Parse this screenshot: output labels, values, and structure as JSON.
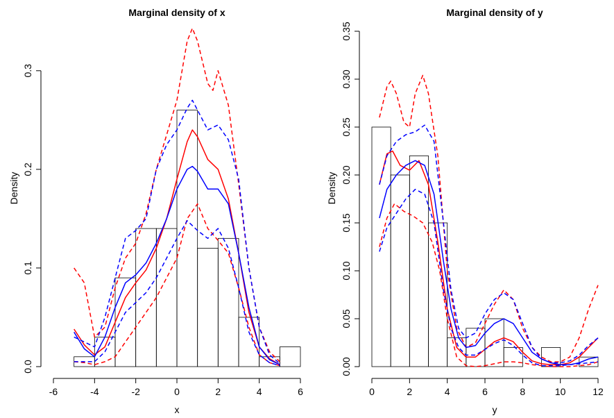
{
  "chart_data": [
    {
      "type": "histogram",
      "title": "Marginal density of x",
      "xlabel": "x",
      "ylabel": "Density",
      "xlim": [
        -6,
        6
      ],
      "ylim": [
        0,
        0.34
      ],
      "x_ticks": [
        -6,
        -4,
        -2,
        0,
        2,
        4,
        6
      ],
      "x_tick_labels": [
        "-6",
        "-4",
        "-2",
        "0",
        "2",
        "4",
        "6"
      ],
      "y_ticks": [
        0.0,
        0.1,
        0.2,
        0.3
      ],
      "y_tick_labels": [
        "0.0",
        "0.1",
        "0.2",
        "0.3"
      ],
      "grid": false,
      "bar_edges": [
        -5,
        -4,
        -3,
        -2,
        -1,
        0,
        1,
        2,
        3,
        4,
        5,
        6
      ],
      "bar_values": [
        0.01,
        0.03,
        0.09,
        0.14,
        0.14,
        0.26,
        0.12,
        0.13,
        0.05,
        0.01,
        0.02
      ],
      "series": [
        {
          "color": "#ff0000",
          "style": "solid",
          "x": [
            -5,
            -4.5,
            -4,
            -3.5,
            -3,
            -2.5,
            -2,
            -1.5,
            -1,
            -0.5,
            0,
            0.5,
            0.75,
            1,
            1.5,
            2,
            2.5,
            3,
            3.5,
            4,
            4.5,
            5
          ],
          "y": [
            0.038,
            0.022,
            0.012,
            0.02,
            0.045,
            0.07,
            0.085,
            0.098,
            0.12,
            0.15,
            0.19,
            0.228,
            0.24,
            0.233,
            0.21,
            0.2,
            0.17,
            0.115,
            0.055,
            0.02,
            0.008,
            0.002
          ]
        },
        {
          "color": "#ff0000",
          "style": "dashed",
          "x": [
            -5,
            -4.5,
            -4,
            -3.5,
            -3,
            -2.5,
            -2,
            -1.5,
            -1,
            -0.5,
            0,
            0.5,
            0.75,
            1,
            1.5,
            1.75,
            2,
            2.5,
            3,
            3.5,
            4,
            4.5,
            5
          ],
          "y": [
            0.1,
            0.085,
            0.03,
            0.04,
            0.08,
            0.11,
            0.125,
            0.155,
            0.2,
            0.235,
            0.27,
            0.33,
            0.343,
            0.33,
            0.287,
            0.28,
            0.3,
            0.265,
            0.185,
            0.1,
            0.04,
            0.015,
            0.005
          ]
        },
        {
          "color": "#ff0000",
          "style": "dashed",
          "x": [
            -5,
            -4.5,
            -4,
            -3.5,
            -3,
            -2.5,
            -2,
            -1.5,
            -1,
            -0.5,
            0,
            0.5,
            1,
            1.5,
            2,
            2.5,
            3,
            3.5,
            4,
            4.5,
            5
          ],
          "y": [
            0.005,
            0.004,
            0.002,
            0.005,
            0.01,
            0.025,
            0.04,
            0.055,
            0.07,
            0.09,
            0.11,
            0.15,
            0.165,
            0.14,
            0.128,
            0.115,
            0.08,
            0.04,
            0.012,
            0.004,
            0.001
          ]
        },
        {
          "color": "#0000ff",
          "style": "solid",
          "x": [
            -5,
            -4.5,
            -4,
            -3.5,
            -3,
            -2.5,
            -2,
            -1.5,
            -1,
            -0.5,
            0,
            0.5,
            0.75,
            1,
            1.5,
            2,
            2.5,
            3,
            3.5,
            4,
            4.5,
            5
          ],
          "y": [
            0.035,
            0.018,
            0.01,
            0.03,
            0.06,
            0.085,
            0.093,
            0.105,
            0.125,
            0.15,
            0.18,
            0.2,
            0.203,
            0.198,
            0.18,
            0.18,
            0.165,
            0.115,
            0.06,
            0.02,
            0.007,
            0.002
          ]
        },
        {
          "color": "#0000ff",
          "style": "dashed",
          "x": [
            -5,
            -4.5,
            -4,
            -3.5,
            -3,
            -2.5,
            -2,
            -1.5,
            -1,
            -0.5,
            0,
            0.5,
            0.75,
            1,
            1.5,
            2,
            2.5,
            3,
            3.5,
            4,
            4.5,
            5
          ],
          "y": [
            0.03,
            0.025,
            0.02,
            0.05,
            0.09,
            0.13,
            0.138,
            0.15,
            0.2,
            0.225,
            0.24,
            0.262,
            0.27,
            0.26,
            0.24,
            0.245,
            0.23,
            0.19,
            0.1,
            0.04,
            0.012,
            0.003
          ]
        },
        {
          "color": "#0000ff",
          "style": "dashed",
          "x": [
            -5,
            -4.5,
            -4,
            -3.5,
            -3,
            -2.5,
            -2,
            -1.5,
            -1,
            -0.5,
            0,
            0.5,
            1,
            1.5,
            2,
            2.5,
            3,
            3.5,
            4,
            4.5,
            5
          ],
          "y": [
            0.005,
            0.005,
            0.005,
            0.015,
            0.035,
            0.055,
            0.065,
            0.075,
            0.09,
            0.11,
            0.13,
            0.148,
            0.138,
            0.13,
            0.14,
            0.12,
            0.08,
            0.035,
            0.012,
            0.004,
            0.001
          ]
        }
      ]
    },
    {
      "type": "histogram",
      "title": "Marginal density of y",
      "xlabel": "y",
      "ylabel": "Density",
      "xlim": [
        0,
        12
      ],
      "ylim": [
        0,
        0.35
      ],
      "x_ticks": [
        0,
        2,
        4,
        6,
        8,
        10,
        12
      ],
      "x_tick_labels": [
        "0",
        "2",
        "4",
        "6",
        "8",
        "10",
        "12"
      ],
      "y_ticks": [
        0.0,
        0.05,
        0.1,
        0.15,
        0.2,
        0.25,
        0.3,
        0.35
      ],
      "y_tick_labels": [
        "0.00",
        "0.05",
        "0.10",
        "0.15",
        "0.20",
        "0.25",
        "0.30",
        "0.35"
      ],
      "grid": false,
      "bar_edges": [
        0,
        1,
        2,
        3,
        4,
        5,
        6,
        7,
        8,
        9,
        10,
        11,
        12
      ],
      "bar_values": [
        0.25,
        0.2,
        0.22,
        0.15,
        0.03,
        0.04,
        0.05,
        0.02,
        0.0,
        0.02,
        0.0,
        0.01
      ],
      "series": [
        {
          "color": "#ff0000",
          "style": "solid",
          "x": [
            0.4,
            0.8,
            1.1,
            1.5,
            2.0,
            2.5,
            3.0,
            3.5,
            4.0,
            4.5,
            5.0,
            5.5,
            6.0,
            6.5,
            7.0,
            7.5,
            8.0,
            8.5,
            9.0,
            9.5,
            10.0,
            10.5,
            11.0,
            11.5,
            12.0
          ],
          "y": [
            0.19,
            0.222,
            0.225,
            0.21,
            0.205,
            0.215,
            0.19,
            0.13,
            0.06,
            0.02,
            0.01,
            0.01,
            0.018,
            0.026,
            0.03,
            0.026,
            0.015,
            0.006,
            0.003,
            0.002,
            0.002,
            0.004,
            0.01,
            0.02,
            0.03
          ]
        },
        {
          "color": "#ff0000",
          "style": "dashed",
          "x": [
            0.4,
            0.8,
            1.0,
            1.3,
            1.7,
            2.0,
            2.3,
            2.7,
            3.0,
            3.5,
            4.0,
            4.5,
            5.0,
            5.5,
            6.0,
            6.5,
            7.0,
            7.5,
            8.0,
            8.5,
            9.0,
            9.5,
            10.0,
            10.5,
            11.0,
            11.5,
            12.0
          ],
          "y": [
            0.26,
            0.292,
            0.298,
            0.285,
            0.255,
            0.25,
            0.285,
            0.304,
            0.285,
            0.22,
            0.1,
            0.04,
            0.02,
            0.025,
            0.045,
            0.065,
            0.08,
            0.07,
            0.04,
            0.02,
            0.01,
            0.005,
            0.005,
            0.01,
            0.03,
            0.06,
            0.085
          ]
        },
        {
          "color": "#ff0000",
          "style": "dashed",
          "x": [
            0.4,
            0.8,
            1.2,
            1.7,
            2.2,
            2.7,
            3.2,
            3.6,
            4.0,
            4.5,
            5.0,
            5.5,
            6.0,
            6.5,
            7.0,
            7.5,
            8.0,
            8.5,
            9.0,
            9.5,
            10.0,
            10.5,
            11.0,
            11.5,
            12.0
          ],
          "y": [
            0.125,
            0.155,
            0.17,
            0.162,
            0.157,
            0.15,
            0.13,
            0.1,
            0.05,
            0.01,
            0.001,
            0.0,
            0.001,
            0.003,
            0.005,
            0.005,
            0.004,
            0.002,
            0.001,
            0.0,
            0.0,
            0.0,
            0.001,
            0.002,
            0.005
          ]
        },
        {
          "color": "#0000ff",
          "style": "solid",
          "x": [
            0.4,
            0.8,
            1.3,
            1.8,
            2.3,
            2.8,
            3.3,
            3.8,
            4.2,
            4.6,
            5.0,
            5.5,
            6.0,
            6.5,
            7.0,
            7.5,
            8.0,
            8.5,
            9.0,
            9.5,
            10.0,
            10.5,
            11.0,
            11.5,
            12.0
          ],
          "y": [
            0.155,
            0.185,
            0.2,
            0.21,
            0.215,
            0.21,
            0.18,
            0.11,
            0.06,
            0.03,
            0.02,
            0.022,
            0.035,
            0.045,
            0.05,
            0.045,
            0.03,
            0.015,
            0.008,
            0.004,
            0.002,
            0.002,
            0.004,
            0.008,
            0.01
          ]
        },
        {
          "color": "#0000ff",
          "style": "dashed",
          "x": [
            0.4,
            0.8,
            1.3,
            1.8,
            2.3,
            2.8,
            3.3,
            3.8,
            4.2,
            4.6,
            5.0,
            5.5,
            6.0,
            6.5,
            7.0,
            7.5,
            8.0,
            8.5,
            9.0,
            9.5,
            10.0,
            10.5,
            11.0,
            11.5,
            12.0
          ],
          "y": [
            0.19,
            0.22,
            0.235,
            0.242,
            0.245,
            0.252,
            0.235,
            0.15,
            0.08,
            0.04,
            0.03,
            0.035,
            0.055,
            0.07,
            0.077,
            0.07,
            0.045,
            0.02,
            0.008,
            0.004,
            0.004,
            0.006,
            0.012,
            0.022,
            0.03
          ]
        },
        {
          "color": "#0000ff",
          "style": "dashed",
          "x": [
            0.4,
            0.8,
            1.3,
            1.8,
            2.3,
            2.8,
            3.3,
            3.8,
            4.2,
            4.6,
            5.0,
            5.5,
            6.0,
            6.5,
            7.0,
            7.5,
            8.0,
            8.5,
            9.0,
            9.5,
            10.0,
            10.5,
            11.0,
            11.5,
            12.0
          ],
          "y": [
            0.12,
            0.145,
            0.16,
            0.175,
            0.185,
            0.18,
            0.15,
            0.08,
            0.04,
            0.02,
            0.012,
            0.012,
            0.018,
            0.024,
            0.028,
            0.022,
            0.012,
            0.004,
            0.001,
            0.001,
            0.001,
            0.002,
            0.003,
            0.004,
            0.005
          ]
        }
      ]
    }
  ]
}
